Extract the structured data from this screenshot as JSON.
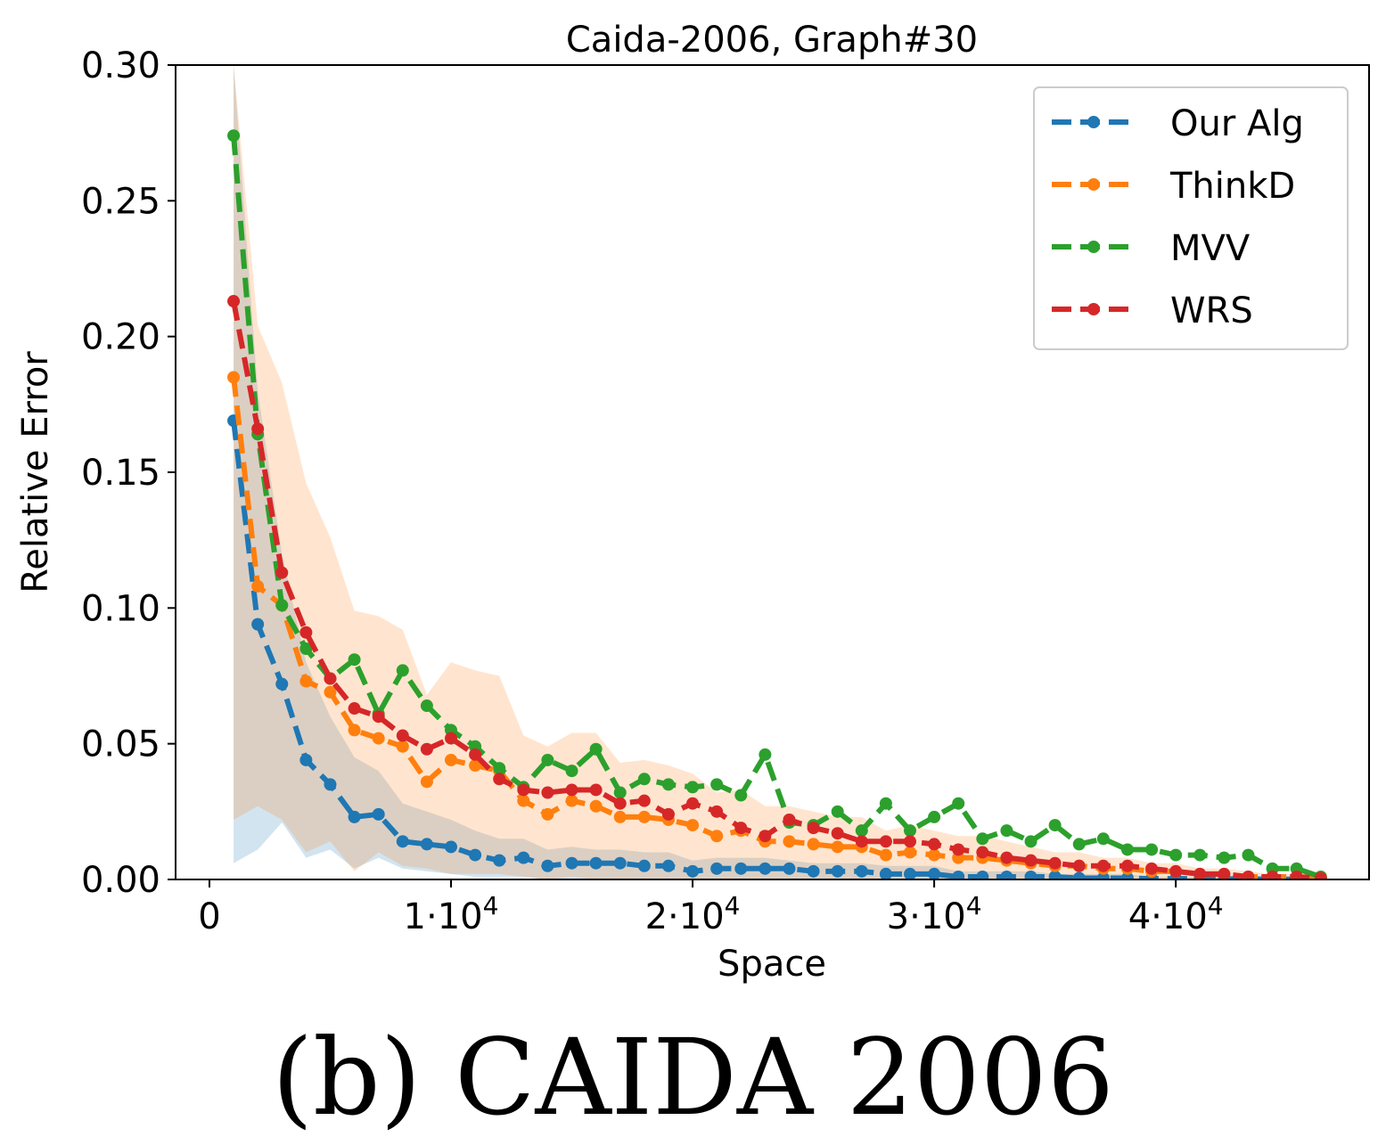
{
  "caption": "(b) CAIDA 2006",
  "chart_data": {
    "type": "line",
    "title": "Caida-2006, Graph#30",
    "xlabel": "Space",
    "ylabel": "Relative Error",
    "xlim": [
      -1400,
      48000
    ],
    "ylim": [
      0,
      0.3
    ],
    "xticks": [
      {
        "value": 0,
        "mantissa": "0",
        "exp": ""
      },
      {
        "value": 10000,
        "mantissa": "1·10",
        "exp": "4"
      },
      {
        "value": 20000,
        "mantissa": "2·10",
        "exp": "4"
      },
      {
        "value": 30000,
        "mantissa": "3·10",
        "exp": "4"
      },
      {
        "value": 40000,
        "mantissa": "4·10",
        "exp": "4"
      }
    ],
    "yticks": [
      "0.00",
      "0.05",
      "0.10",
      "0.15",
      "0.20",
      "0.25",
      "0.30"
    ],
    "grid": false,
    "legend_position": "top-right",
    "x": [
      1000,
      2000,
      3000,
      4000,
      5000,
      6000,
      7000,
      8000,
      9000,
      10000,
      11000,
      12000,
      13000,
      14000,
      15000,
      16000,
      17000,
      18000,
      19000,
      20000,
      21000,
      22000,
      23000,
      24000,
      25000,
      26000,
      27000,
      28000,
      29000,
      30000,
      31000,
      32000,
      33000,
      34000,
      35000,
      36000,
      37000,
      38000,
      39000,
      40000,
      41000,
      42000,
      43000,
      44000,
      45000,
      46000
    ],
    "series": [
      {
        "name": "Our Alg",
        "color": "#1f77b4",
        "values": [
          0.169,
          0.094,
          0.072,
          0.044,
          0.035,
          0.023,
          0.024,
          0.014,
          0.013,
          0.012,
          0.009,
          0.007,
          0.008,
          0.005,
          0.006,
          0.006,
          0.006,
          0.005,
          0.005,
          0.003,
          0.004,
          0.004,
          0.004,
          0.004,
          0.003,
          0.003,
          0.003,
          0.002,
          0.002,
          0.002,
          0.001,
          0.001,
          0.001,
          0.001,
          0.001,
          0.0005,
          0.0005,
          0.0005,
          0.0003,
          0.0003,
          0.0003,
          0.0002,
          0.0002,
          0.0001,
          0.0001,
          0.0001
        ],
        "band_low": [
          0.006,
          0.011,
          0.021,
          0.008,
          0.011,
          0.004,
          0.008,
          0.004,
          0.003,
          0.002,
          0.001,
          0.001,
          0.001,
          0.0,
          0.0,
          0.0,
          0.0,
          0.0,
          0.0,
          0.0,
          0.0,
          0.0,
          0.0,
          0.0,
          0.0,
          0.0,
          0.0,
          0.0,
          0.0,
          0.0,
          0.0,
          0.0,
          0.0,
          0.0,
          0.0,
          0.0,
          0.0,
          0.0,
          0.0,
          0.0,
          0.0,
          0.0,
          0.0,
          0.0,
          0.0,
          0.0
        ],
        "band_high": [
          0.3,
          0.18,
          0.12,
          0.08,
          0.06,
          0.045,
          0.04,
          0.028,
          0.025,
          0.022,
          0.018,
          0.015,
          0.015,
          0.011,
          0.012,
          0.011,
          0.011,
          0.01,
          0.01,
          0.007,
          0.008,
          0.008,
          0.008,
          0.007,
          0.006,
          0.006,
          0.006,
          0.005,
          0.005,
          0.005,
          0.003,
          0.003,
          0.003,
          0.003,
          0.002,
          0.002,
          0.002,
          0.002,
          0.001,
          0.001,
          0.001,
          0.001,
          0.001,
          0.0005,
          0.0005,
          0.0005
        ]
      },
      {
        "name": "ThinkD",
        "color": "#ff7f0e",
        "values": [
          0.185,
          0.108,
          0.101,
          0.073,
          0.069,
          0.055,
          0.052,
          0.049,
          0.036,
          0.044,
          0.042,
          0.04,
          0.029,
          0.024,
          0.029,
          0.027,
          0.023,
          0.023,
          0.022,
          0.02,
          0.016,
          0.018,
          0.014,
          0.014,
          0.013,
          0.012,
          0.012,
          0.009,
          0.01,
          0.009,
          0.008,
          0.008,
          0.007,
          0.006,
          0.005,
          0.005,
          0.004,
          0.004,
          0.003,
          0.003,
          0.002,
          0.002,
          0.001,
          0.001,
          0.001,
          0.0005
        ],
        "band_low": [
          0.022,
          0.027,
          0.022,
          0.01,
          0.014,
          0.003,
          0.01,
          0.005,
          0.004,
          0.002,
          0.002,
          0.002,
          0.001,
          0.0,
          0.001,
          0.0,
          0.0,
          0.0,
          0.0,
          0.0,
          0.0,
          0.0,
          0.0,
          0.0,
          0.0,
          0.0,
          0.0,
          0.0,
          0.0,
          0.0,
          0.0,
          0.0,
          0.0,
          0.0,
          0.0,
          0.0,
          0.0,
          0.0,
          0.0,
          0.0,
          0.0,
          0.0,
          0.0,
          0.0,
          0.0,
          0.0
        ],
        "band_high": [
          0.3,
          0.204,
          0.183,
          0.146,
          0.126,
          0.099,
          0.097,
          0.092,
          0.068,
          0.08,
          0.077,
          0.075,
          0.053,
          0.049,
          0.054,
          0.054,
          0.043,
          0.044,
          0.042,
          0.039,
          0.032,
          0.033,
          0.027,
          0.027,
          0.025,
          0.023,
          0.023,
          0.018,
          0.02,
          0.018,
          0.016,
          0.016,
          0.014,
          0.012,
          0.01,
          0.01,
          0.008,
          0.008,
          0.006,
          0.006,
          0.004,
          0.004,
          0.003,
          0.002,
          0.002,
          0.001
        ]
      },
      {
        "name": "MVV",
        "color": "#2ca02c",
        "values": [
          0.274,
          0.164,
          0.101,
          0.085,
          0.074,
          0.081,
          0.061,
          0.077,
          0.064,
          0.055,
          0.049,
          0.041,
          0.034,
          0.044,
          0.04,
          0.048,
          0.032,
          0.037,
          0.035,
          0.034,
          0.035,
          0.031,
          0.046,
          0.021,
          0.02,
          0.025,
          0.018,
          0.028,
          0.018,
          0.023,
          0.028,
          0.015,
          0.018,
          0.014,
          0.02,
          0.013,
          0.015,
          0.011,
          0.011,
          0.009,
          0.009,
          0.008,
          0.009,
          0.004,
          0.004,
          0.001
        ]
      },
      {
        "name": "WRS",
        "color": "#d62728",
        "values": [
          0.213,
          0.166,
          0.113,
          0.091,
          0.074,
          0.063,
          0.06,
          0.053,
          0.048,
          0.052,
          0.046,
          0.037,
          0.033,
          0.032,
          0.033,
          0.033,
          0.028,
          0.029,
          0.024,
          0.028,
          0.025,
          0.019,
          0.016,
          0.022,
          0.019,
          0.017,
          0.014,
          0.014,
          0.014,
          0.013,
          0.011,
          0.01,
          0.008,
          0.007,
          0.006,
          0.005,
          0.005,
          0.005,
          0.004,
          0.003,
          0.002,
          0.002,
          0.001,
          0.001,
          0.001,
          0.0005
        ]
      }
    ]
  }
}
